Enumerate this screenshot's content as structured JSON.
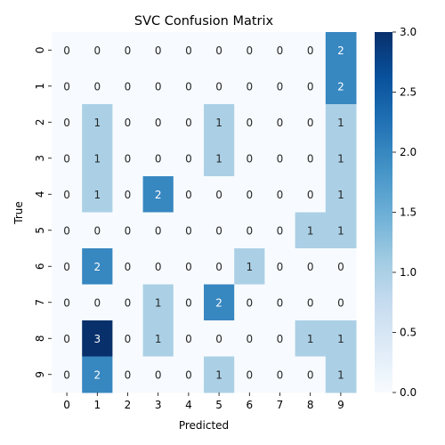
{
  "chart_data": {
    "type": "heatmap",
    "title": "SVC Confusion Matrix",
    "xlabel": "Predicted",
    "ylabel": "True",
    "x_categories": [
      "0",
      "1",
      "2",
      "3",
      "4",
      "5",
      "6",
      "7",
      "8",
      "9"
    ],
    "y_categories": [
      "0",
      "1",
      "2",
      "3",
      "4",
      "5",
      "6",
      "7",
      "8",
      "9"
    ],
    "values": [
      [
        0,
        0,
        0,
        0,
        0,
        0,
        0,
        0,
        0,
        2
      ],
      [
        0,
        0,
        0,
        0,
        0,
        0,
        0,
        0,
        0,
        2
      ],
      [
        0,
        1,
        0,
        0,
        0,
        1,
        0,
        0,
        0,
        1
      ],
      [
        0,
        1,
        0,
        0,
        0,
        1,
        0,
        0,
        0,
        1
      ],
      [
        0,
        1,
        0,
        2,
        0,
        0,
        0,
        0,
        0,
        1
      ],
      [
        0,
        0,
        0,
        0,
        0,
        0,
        0,
        0,
        1,
        1
      ],
      [
        0,
        2,
        0,
        0,
        0,
        0,
        1,
        0,
        0,
        0
      ],
      [
        0,
        0,
        0,
        1,
        0,
        2,
        0,
        0,
        0,
        0
      ],
      [
        0,
        3,
        0,
        1,
        0,
        0,
        0,
        0,
        1,
        1
      ],
      [
        0,
        2,
        0,
        0,
        0,
        1,
        0,
        0,
        0,
        1
      ]
    ],
    "colorbar": {
      "range": [
        0,
        3
      ],
      "ticks": [
        "0.0",
        "0.5",
        "1.0",
        "1.5",
        "2.0",
        "2.5",
        "3.0"
      ],
      "colormap": "Blues"
    },
    "colors": {
      "low": "#f7fbff",
      "mid1": "#c6dbef",
      "mid2": "#6baed6",
      "mid3": "#2171b5",
      "high": "#08306b"
    }
  }
}
